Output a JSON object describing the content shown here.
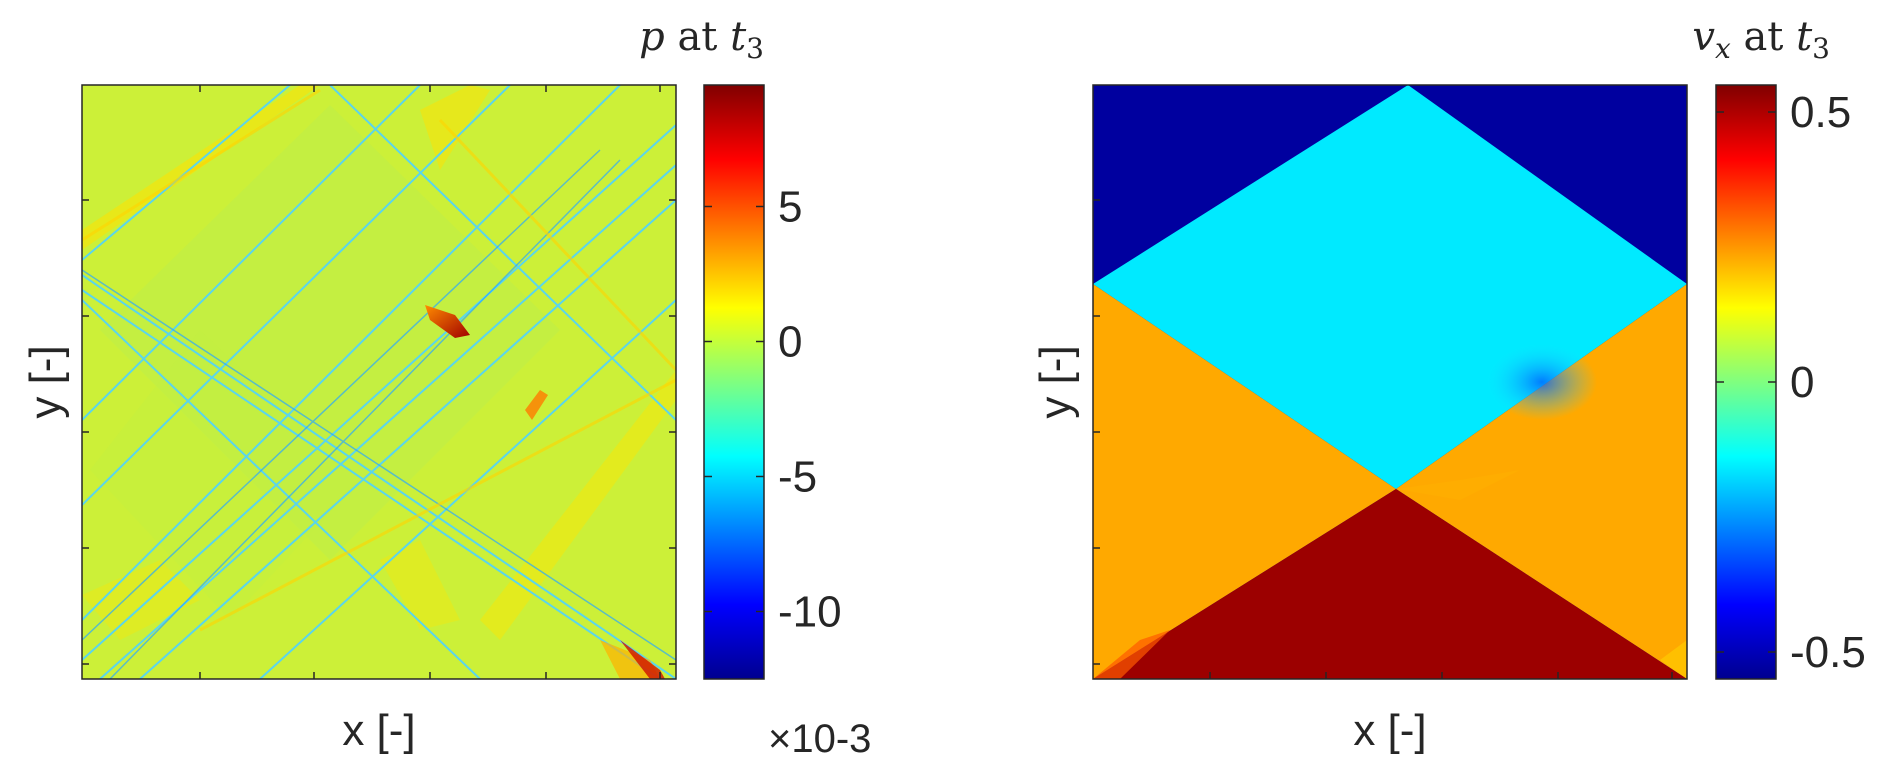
{
  "chart_data": [
    {
      "type": "heatmap",
      "title": "",
      "xlabel": "x [-]",
      "ylabel": "y [-]",
      "grid": false,
      "colormap": "jet",
      "colorbar": {
        "title_var": "p",
        "title_mid": " at ",
        "title_time": "t",
        "title_time_sub": "3",
        "ticks": [
          5,
          0,
          -5,
          -10
        ],
        "tick_labels": [
          "5",
          "0",
          "-5",
          "-10"
        ],
        "range": [
          -12.5,
          9.5
        ],
        "exponent_label": "×10",
        "exponent_power": "-3",
        "location": "right"
      },
      "field_description": "near-zero background with thin diagonal wave fronts"
    },
    {
      "type": "heatmap",
      "title": "",
      "xlabel": "x [-]",
      "ylabel": "y [-]",
      "grid": false,
      "colormap": "jet",
      "colorbar": {
        "title_var": "v",
        "title_var_sub": "x",
        "title_mid": " at ",
        "title_time": "t",
        "title_time_sub": "3",
        "ticks": [
          0.5,
          0,
          -0.5
        ],
        "tick_labels": [
          "0.5",
          "0",
          "-0.5"
        ],
        "range": [
          -0.55,
          0.55
        ],
        "location": "right"
      },
      "regions": [
        {
          "name": "top corners",
          "value": -0.53
        },
        {
          "name": "central diamond",
          "value": -0.16
        },
        {
          "name": "left and right triangles",
          "value": 0.23
        },
        {
          "name": "bottom triangle",
          "value": 0.52
        }
      ]
    }
  ]
}
